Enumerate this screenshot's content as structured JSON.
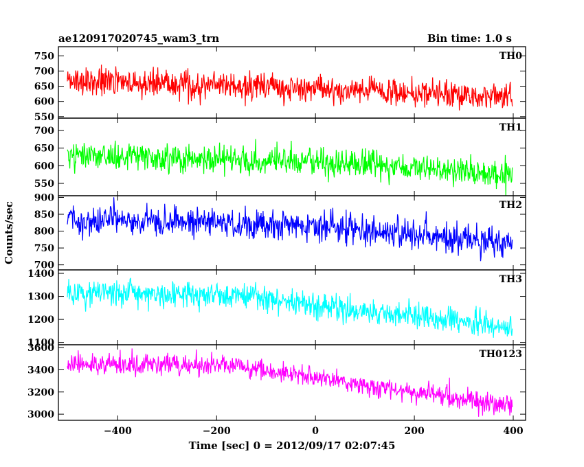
{
  "chart_data": {
    "type": "line",
    "title": "ae120917020745_wam3_trn",
    "subtitle": "Bin time: 1.0 s",
    "xlabel": "Time [sec] 0 = 2012/09/17 02:07:45",
    "ylabel": "Counts/sec",
    "xlim": [
      -520,
      425
    ],
    "xticks": [
      -400,
      -200,
      0,
      200,
      400
    ],
    "grid": false,
    "panels": [
      {
        "name": "TH0",
        "color": "#ff0000",
        "ylim": [
          545,
          780
        ],
        "yticks": [
          550,
          600,
          650,
          700,
          750
        ],
        "x_range": [
          -502,
          398
        ],
        "trend": {
          "x": [
            -502,
            0,
            398
          ],
          "y": [
            668,
            642,
            612
          ]
        },
        "noise_halfwidth": 45
      },
      {
        "name": "TH1",
        "color": "#00ff00",
        "ylim": [
          515,
          735
        ],
        "yticks": [
          550,
          600,
          650,
          700
        ],
        "x_range": [
          -502,
          398
        ],
        "trend": {
          "x": [
            -502,
            0,
            398
          ],
          "y": [
            630,
            610,
            575
          ]
        },
        "noise_halfwidth": 40
      },
      {
        "name": "TH2",
        "color": "#0000ff",
        "ylim": [
          685,
          905
        ],
        "yticks": [
          700,
          750,
          800,
          850,
          900
        ],
        "x_range": [
          -502,
          398
        ],
        "trend": {
          "x": [
            -502,
            0,
            398
          ],
          "y": [
            838,
            815,
            765
          ]
        },
        "noise_halfwidth": 45
      },
      {
        "name": "TH3",
        "color": "#00ffff",
        "ylim": [
          1090,
          1415
        ],
        "yticks": [
          1100,
          1200,
          1300,
          1400
        ],
        "x_range": [
          -502,
          398
        ],
        "trend": {
          "x": [
            -502,
            -150,
            0,
            398
          ],
          "y": [
            1315,
            1305,
            1260,
            1170
          ]
        },
        "noise_halfwidth": 55
      },
      {
        "name": "TH0123",
        "color": "#ff00ff",
        "ylim": [
          2945,
          3625
        ],
        "yticks": [
          3000,
          3200,
          3400,
          3600
        ],
        "x_range": [
          -502,
          398
        ],
        "trend": {
          "x": [
            -502,
            -150,
            0,
            398
          ],
          "y": [
            3455,
            3430,
            3320,
            3080
          ]
        },
        "noise_halfwidth": 95
      }
    ]
  }
}
